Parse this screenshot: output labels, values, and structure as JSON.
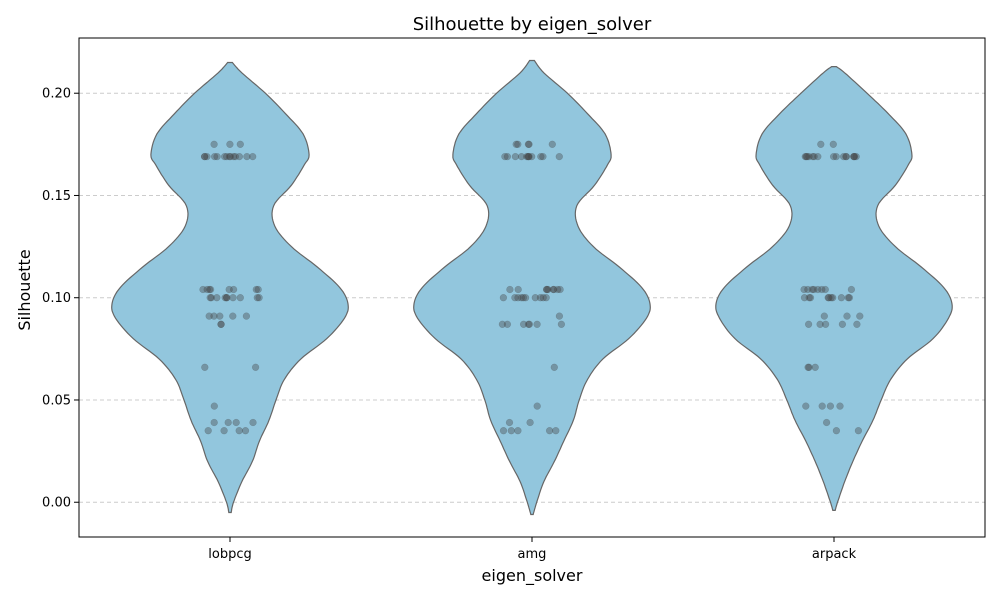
{
  "chart_data": {
    "type": "violin",
    "title": "Silhouette by eigen_solver",
    "xlabel": "eigen_solver",
    "ylabel": "Silhouette",
    "categories": [
      "lobpcg",
      "amg",
      "arpack"
    ],
    "ylim": [
      -0.017,
      0.227
    ],
    "yticks": [
      0.0,
      0.05,
      0.1,
      0.15,
      0.2
    ],
    "ytick_labels": [
      "0.00",
      "0.05",
      "0.10",
      "0.15",
      "0.20"
    ],
    "grid": "y-dashed",
    "violin_color": "#92c6dd",
    "violin_edge": "#666666",
    "point_color": "#444444",
    "violins": [
      {
        "name": "lobpcg",
        "min": -0.005,
        "max": 0.215,
        "profile": [
          [
            -0.005,
            0.01
          ],
          [
            0.0,
            0.03
          ],
          [
            0.01,
            0.1
          ],
          [
            0.02,
            0.19
          ],
          [
            0.03,
            0.25
          ],
          [
            0.04,
            0.33
          ],
          [
            0.05,
            0.39
          ],
          [
            0.06,
            0.46
          ],
          [
            0.07,
            0.6
          ],
          [
            0.08,
            0.82
          ],
          [
            0.09,
            0.97
          ],
          [
            0.097,
            1.0
          ],
          [
            0.105,
            0.93
          ],
          [
            0.115,
            0.74
          ],
          [
            0.125,
            0.52
          ],
          [
            0.135,
            0.38
          ],
          [
            0.145,
            0.37
          ],
          [
            0.155,
            0.52
          ],
          [
            0.165,
            0.63
          ],
          [
            0.17,
            0.67
          ],
          [
            0.18,
            0.62
          ],
          [
            0.19,
            0.47
          ],
          [
            0.2,
            0.3
          ],
          [
            0.21,
            0.1
          ],
          [
            0.215,
            0.02
          ]
        ],
        "points": [
          0.169,
          0.169,
          0.169,
          0.169,
          0.169,
          0.169,
          0.169,
          0.169,
          0.169,
          0.169,
          0.169,
          0.169,
          0.169,
          0.169,
          0.175,
          0.175,
          0.175,
          0.104,
          0.104,
          0.104,
          0.104,
          0.104,
          0.104,
          0.104,
          0.104,
          0.1,
          0.1,
          0.1,
          0.1,
          0.1,
          0.1,
          0.1,
          0.1,
          0.1,
          0.1,
          0.091,
          0.091,
          0.091,
          0.091,
          0.091,
          0.087,
          0.087,
          0.066,
          0.066,
          0.047,
          0.039,
          0.039,
          0.039,
          0.039,
          0.035,
          0.035,
          0.035,
          0.035
        ]
      },
      {
        "name": "amg",
        "min": -0.006,
        "max": 0.216,
        "profile": [
          [
            -0.006,
            0.01
          ],
          [
            0.0,
            0.04
          ],
          [
            0.01,
            0.1
          ],
          [
            0.02,
            0.19
          ],
          [
            0.03,
            0.27
          ],
          [
            0.04,
            0.35
          ],
          [
            0.05,
            0.4
          ],
          [
            0.06,
            0.47
          ],
          [
            0.07,
            0.6
          ],
          [
            0.08,
            0.82
          ],
          [
            0.09,
            0.97
          ],
          [
            0.097,
            1.0
          ],
          [
            0.105,
            0.93
          ],
          [
            0.115,
            0.74
          ],
          [
            0.125,
            0.52
          ],
          [
            0.135,
            0.39
          ],
          [
            0.145,
            0.38
          ],
          [
            0.155,
            0.53
          ],
          [
            0.165,
            0.64
          ],
          [
            0.17,
            0.67
          ],
          [
            0.18,
            0.62
          ],
          [
            0.19,
            0.47
          ],
          [
            0.2,
            0.3
          ],
          [
            0.21,
            0.1
          ],
          [
            0.216,
            0.02
          ]
        ],
        "points": [
          0.169,
          0.169,
          0.169,
          0.169,
          0.169,
          0.169,
          0.169,
          0.169,
          0.169,
          0.169,
          0.169,
          0.169,
          0.175,
          0.175,
          0.175,
          0.175,
          0.175,
          0.104,
          0.104,
          0.104,
          0.104,
          0.104,
          0.104,
          0.104,
          0.104,
          0.104,
          0.1,
          0.1,
          0.1,
          0.1,
          0.1,
          0.1,
          0.1,
          0.1,
          0.1,
          0.1,
          0.091,
          0.087,
          0.087,
          0.087,
          0.087,
          0.087,
          0.087,
          0.087,
          0.066,
          0.047,
          0.039,
          0.039,
          0.035,
          0.035,
          0.035,
          0.035,
          0.035
        ]
      },
      {
        "name": "arpack",
        "min": -0.004,
        "max": 0.213,
        "profile": [
          [
            -0.004,
            0.01
          ],
          [
            0.0,
            0.03
          ],
          [
            0.01,
            0.09
          ],
          [
            0.02,
            0.16
          ],
          [
            0.03,
            0.24
          ],
          [
            0.04,
            0.33
          ],
          [
            0.05,
            0.4
          ],
          [
            0.06,
            0.48
          ],
          [
            0.07,
            0.62
          ],
          [
            0.08,
            0.84
          ],
          [
            0.09,
            0.97
          ],
          [
            0.097,
            1.0
          ],
          [
            0.105,
            0.93
          ],
          [
            0.115,
            0.74
          ],
          [
            0.125,
            0.52
          ],
          [
            0.135,
            0.38
          ],
          [
            0.145,
            0.37
          ],
          [
            0.155,
            0.52
          ],
          [
            0.165,
            0.63
          ],
          [
            0.17,
            0.66
          ],
          [
            0.18,
            0.61
          ],
          [
            0.19,
            0.46
          ],
          [
            0.2,
            0.28
          ],
          [
            0.21,
            0.09
          ],
          [
            0.213,
            0.02
          ]
        ],
        "points": [
          0.169,
          0.169,
          0.169,
          0.169,
          0.169,
          0.169,
          0.169,
          0.169,
          0.169,
          0.169,
          0.169,
          0.169,
          0.169,
          0.169,
          0.169,
          0.169,
          0.175,
          0.175,
          0.104,
          0.104,
          0.104,
          0.104,
          0.104,
          0.104,
          0.104,
          0.104,
          0.1,
          0.1,
          0.1,
          0.1,
          0.1,
          0.1,
          0.1,
          0.1,
          0.1,
          0.1,
          0.091,
          0.091,
          0.091,
          0.087,
          0.087,
          0.087,
          0.087,
          0.087,
          0.066,
          0.066,
          0.066,
          0.047,
          0.047,
          0.047,
          0.047,
          0.039,
          0.035,
          0.035
        ]
      }
    ]
  }
}
